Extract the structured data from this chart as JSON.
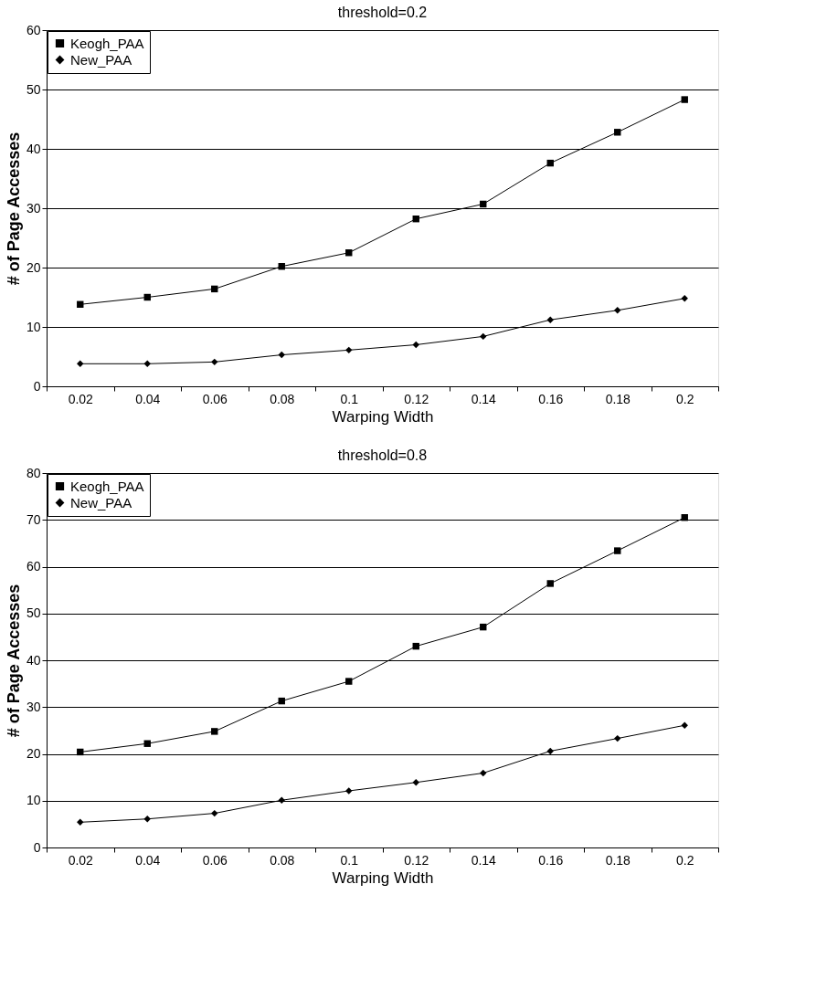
{
  "chart_data": [
    {
      "type": "line",
      "title": "threshold=0.2",
      "xlabel": "Warping Width",
      "ylabel": "# of Page Accesses",
      "categories": [
        "0.02",
        "0.04",
        "0.06",
        "0.08",
        "0.1",
        "0.12",
        "0.14",
        "0.16",
        "0.18",
        "0.2"
      ],
      "series": [
        {
          "name": "Keogh_PAA",
          "color": "#000000",
          "marker": "square",
          "values": [
            13.8,
            15.0,
            16.4,
            20.2,
            22.5,
            28.2,
            30.7,
            37.6,
            42.8,
            48.3
          ]
        },
        {
          "name": "New_PAA",
          "color": "#000000",
          "marker": "diamond",
          "values": [
            3.8,
            3.8,
            4.1,
            5.3,
            6.1,
            7.0,
            8.4,
            11.2,
            12.8,
            14.8
          ]
        }
      ],
      "ylim": [
        0,
        60
      ],
      "yticks": [
        0,
        10,
        20,
        30,
        40,
        50,
        60
      ],
      "grid": "y",
      "legend": "top left",
      "line_style": "solid"
    },
    {
      "type": "line",
      "title": "threshold=0.8",
      "xlabel": "Warping Width",
      "ylabel": "# of Page Accesses",
      "categories": [
        "0.02",
        "0.04",
        "0.06",
        "0.08",
        "0.1",
        "0.12",
        "0.14",
        "0.16",
        "0.18",
        "0.2"
      ],
      "series": [
        {
          "name": "Keogh_PAA",
          "color": "#000000",
          "marker": "square",
          "values": [
            20.4,
            22.2,
            24.8,
            31.3,
            35.5,
            43.0,
            47.1,
            56.4,
            63.4,
            70.5
          ]
        },
        {
          "name": "New_PAA",
          "color": "#000000",
          "marker": "diamond",
          "values": [
            5.4,
            6.1,
            7.3,
            10.1,
            12.1,
            13.9,
            15.9,
            20.6,
            23.3,
            26.1
          ]
        }
      ],
      "ylim": [
        0,
        80
      ],
      "yticks": [
        0,
        10,
        20,
        30,
        40,
        50,
        60,
        70,
        80
      ],
      "grid": "y",
      "legend": "top left",
      "line_style": "solid"
    }
  ]
}
